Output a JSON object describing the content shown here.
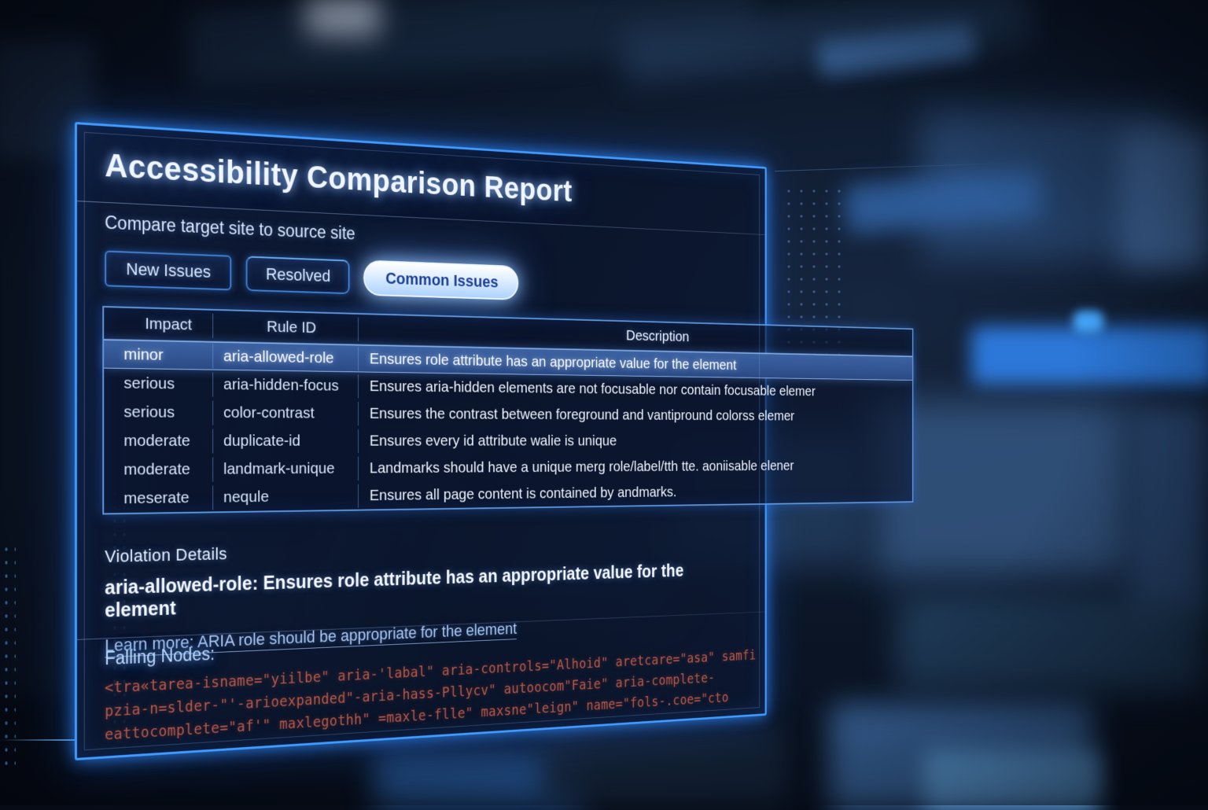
{
  "header": {
    "title": "Accessibility Comparison Report",
    "subtitle": "Compare target site to source site"
  },
  "tabs": [
    {
      "label": "New Issues",
      "active": false
    },
    {
      "label": "Resolved",
      "active": false
    },
    {
      "label": "Common Issues",
      "active": true
    }
  ],
  "table": {
    "columns": [
      "Impact",
      "Rule ID",
      "Description"
    ],
    "rows": [
      {
        "impact": "minor",
        "rule_id": "aria-allowed-role",
        "description": "Ensures role attribute has an appropriate value for the element",
        "selected": true
      },
      {
        "impact": "serious",
        "rule_id": "aria-hidden-focus",
        "description": "Ensures aria-hidden elements are not focusable nor contain focusable elemer",
        "selected": false
      },
      {
        "impact": "serious",
        "rule_id": "color-contrast",
        "description": "Ensures the contrast between foreground and vantipround colorss elemer",
        "selected": false
      },
      {
        "impact": "moderate",
        "rule_id": "duplicate-id",
        "description": "Ensures every id attribute walie is unique",
        "selected": false
      },
      {
        "impact": "moderate",
        "rule_id": "landmark-unique",
        "description": "Landmarks should have a unique merg role/label/tth tte. aoniisable elener",
        "selected": false
      },
      {
        "impact": "meserate",
        "rule_id": "nequle",
        "description": "Ensures all page content is contained by andmarks.",
        "selected": false
      }
    ]
  },
  "violation": {
    "heading": "Violation Details",
    "summary": "aria-allowed-role: Ensures role attribute has an appropriate value for the element",
    "learn_more": "Learn more: ARIA role should be appropriate for the element"
  },
  "failing_nodes": {
    "heading": "Falling Nodes:",
    "code_lines": [
      "<tra«tarea-isname=\"yiilbe\" aria-'labal\" aria-controls=\"Alhoid\" aretcare=\"asa\" samfi",
      "pzia-n=slder-\"'-arioexpanded\"-aria-hass-Pllycv\" autoocom\"Faie\" aria-complete-",
      "eattocomplete=\"af'\" maxlegothh\" =maxle-flle\" maxsne\"leign\" name=\"fols-.coe=\"cto"
    ]
  },
  "colors": {
    "accent_glow": "#3f9bff",
    "panel_background": "#0d1c3a",
    "selected_row": "#30558f",
    "active_tab_text": "#1c3f96",
    "link_text": "#a9c6f2",
    "code_text": "#b5584a"
  }
}
